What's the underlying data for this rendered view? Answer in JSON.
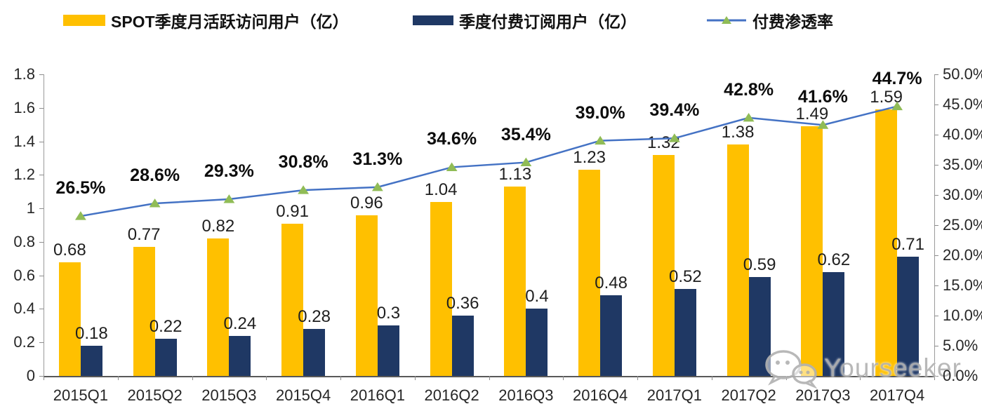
{
  "legend": {
    "mau": "SPOT季度月活跃访问用户（亿）",
    "subs": "季度付费订阅用户（亿）",
    "penetration": "付费渗透率"
  },
  "watermark": {
    "text": "Yourseeker"
  },
  "colors": {
    "mau_bar": "#FFC000",
    "subs_bar": "#1F3864",
    "line": "#4472C4",
    "marker": "#90BC56",
    "axis_line": "#9A9A9A",
    "bottom_axis": "#595959",
    "text": "#262626",
    "watermark": "#B3B3B3"
  },
  "chart_data": {
    "type": "bar",
    "subtype": "grouped-bar-with-line",
    "title": "",
    "xlabel": "",
    "ylabel": "",
    "grid": false,
    "legend_position": "top",
    "categories": [
      "2015Q1",
      "2015Q2",
      "2015Q3",
      "2015Q4",
      "2016Q1",
      "2016Q2",
      "2016Q3",
      "2016Q4",
      "2017Q1",
      "2017Q2",
      "2017Q3",
      "2017Q4"
    ],
    "series": [
      {
        "name": "SPOT季度月活跃访问用户（亿）",
        "type": "bar",
        "axis": "left",
        "values": [
          0.68,
          0.77,
          0.82,
          0.91,
          0.96,
          1.04,
          1.13,
          1.23,
          1.32,
          1.38,
          1.49,
          1.59
        ],
        "labels": [
          "0.68",
          "0.77",
          "0.82",
          "0.91",
          "0.96",
          "1.04",
          "1.13",
          "1.23",
          "1.32",
          "1.38",
          "1.49",
          "1.59"
        ]
      },
      {
        "name": "季度付费订阅用户（亿）",
        "type": "bar",
        "axis": "left",
        "values": [
          0.18,
          0.22,
          0.24,
          0.28,
          0.3,
          0.36,
          0.4,
          0.48,
          0.52,
          0.59,
          0.62,
          0.71
        ],
        "labels": [
          "0.18",
          "0.22",
          "0.24",
          "0.28",
          "0.3",
          "0.36",
          "0.4",
          "0.48",
          "0.52",
          "0.59",
          "0.62",
          "0.71"
        ]
      },
      {
        "name": "付费渗透率",
        "type": "line",
        "axis": "right",
        "values": [
          26.5,
          28.6,
          29.3,
          30.8,
          31.3,
          34.6,
          35.4,
          39.0,
          39.4,
          42.8,
          41.6,
          44.7
        ],
        "labels": [
          "26.5%",
          "28.6%",
          "29.3%",
          "30.8%",
          "31.3%",
          "34.6%",
          "35.4%",
          "39.0%",
          "39.4%",
          "42.8%",
          "41.6%",
          "44.7%"
        ]
      }
    ],
    "left_axis": {
      "min": 0,
      "max": 1.8,
      "step": 0.2,
      "ticks": [
        "0",
        "0.2",
        "0.4",
        "0.6",
        "0.8",
        "1",
        "1.2",
        "1.4",
        "1.6",
        "1.8"
      ]
    },
    "right_axis": {
      "min": 0,
      "max": 50,
      "step": 5,
      "ticks": [
        "0.0%",
        "5.0%",
        "10.0%",
        "15.0%",
        "20.0%",
        "25.0%",
        "30.0%",
        "35.0%",
        "40.0%",
        "45.0%",
        "50.0%"
      ]
    }
  }
}
